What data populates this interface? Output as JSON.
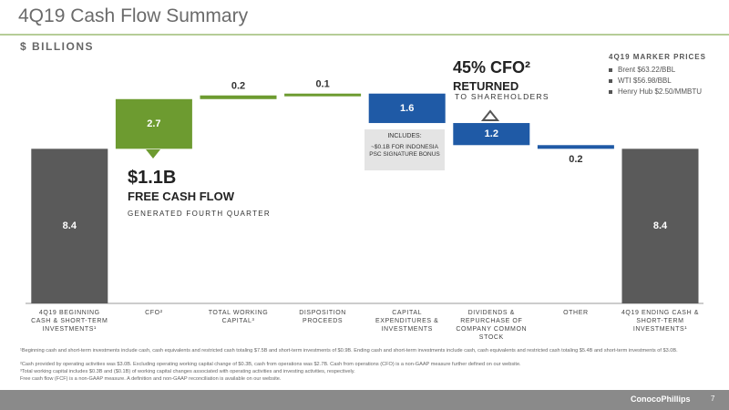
{
  "chart_data": {
    "type": "waterfall",
    "title": "4Q19 Cash Flow Summary",
    "subtitle": "$ BILLIONS",
    "categories": [
      "4Q19 BEGINNING CASH & SHORT-TERM INVESTMENTS¹",
      "CFO²",
      "TOTAL WORKING CAPITAL³",
      "DISPOSITION PROCEEDS",
      "CAPITAL EXPENDITURES & INVESTMENTS",
      "DIVIDENDS & REPURCHASE OF COMPANY COMMON STOCK",
      "OTHER",
      "4Q19 ENDING CASH & SHORT-TERM INVESTMENTS¹"
    ],
    "values": [
      8.4,
      2.7,
      0.2,
      0.1,
      -1.6,
      -1.2,
      -0.2,
      8.4
    ],
    "value_labels": [
      "8.4",
      "2.7",
      "0.2",
      "0.1",
      "1.6",
      "1.2",
      "0.2",
      "8.4"
    ],
    "colors": {
      "total": "#5a5a5a",
      "increase": "#6d9b30",
      "decrease": "#1f5aa6"
    }
  },
  "annotations": {
    "fcf": {
      "value": "$1.1B",
      "label": "FREE CASH FLOW",
      "note": "GENERATED FOURTH QUARTER"
    },
    "returned": {
      "value": "45% CFO²",
      "label": "RETURNED",
      "note": "TO SHAREHOLDERS"
    },
    "callout": {
      "title": "INCLUDES:",
      "text": "~$0.1B FOR INDONESIA PSC SIGNATURE BONUS"
    }
  },
  "marker_prices": {
    "title": "4Q19 MARKER PRICES",
    "items": [
      "Brent $63.22/BBL",
      "WTI $56.98/BBL",
      "Henry Hub $2.50/MMBTU"
    ]
  },
  "footnotes": [
    "¹Beginning cash and short-term investments include cash, cash equivalents and restricted cash totaling $7.5B and short-term investments of $0.9B. Ending cash and short-term investments include cash, cash equivalents and restricted cash totaling $5.4B and short-term investments of $3.0B.",
    "²Cash provided by operating activities was $3.0B. Excluding operating working capital change of $0.3B, cash from operations was $2.7B. Cash from operations (CFO) is a non-GAAP measure further defined on our website.",
    "³Total working capital includes $0.3B and ($0.1B) of working capital changes associated with operating activities and investing activities, respectively.",
    "Free cash flow (FCF) is a non-GAAP measure. A definition and non-GAAP reconciliation is available on our website."
  ],
  "footer": {
    "logo": "ConocoPhillips",
    "page": "7"
  }
}
